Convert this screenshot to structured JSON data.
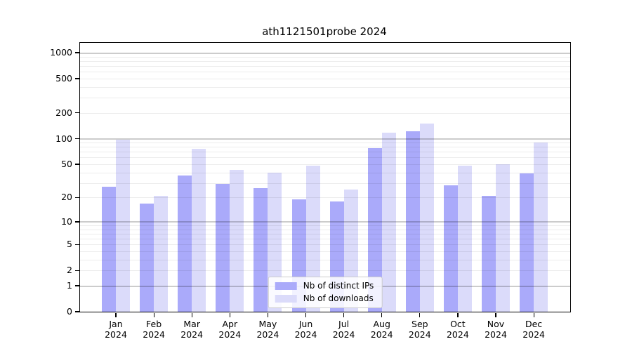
{
  "chart_data": {
    "type": "bar",
    "title": "ath1121501probe 2024",
    "months": [
      "Jan",
      "Feb",
      "Mar",
      "Apr",
      "May",
      "Jun",
      "Jul",
      "Aug",
      "Sep",
      "Oct",
      "Nov",
      "Dec"
    ],
    "year": "2024",
    "series": [
      {
        "name": "Nb of distinct IPs",
        "color": "#aaaafa",
        "values": [
          27,
          17,
          37,
          29,
          26,
          19,
          18,
          78,
          121,
          28,
          21,
          39
        ]
      },
      {
        "name": "Nb of downloads",
        "color": "#dbdbfa",
        "values": [
          97,
          21,
          76,
          43,
          40,
          48,
          25,
          117,
          150,
          48,
          50,
          90
        ]
      }
    ],
    "yticks": [
      0,
      1,
      2,
      5,
      10,
      20,
      50,
      100,
      200,
      500,
      1000
    ],
    "scale": "log1p",
    "ylim": [
      0,
      1300
    ],
    "grid": true,
    "legend_position": "lower center"
  }
}
